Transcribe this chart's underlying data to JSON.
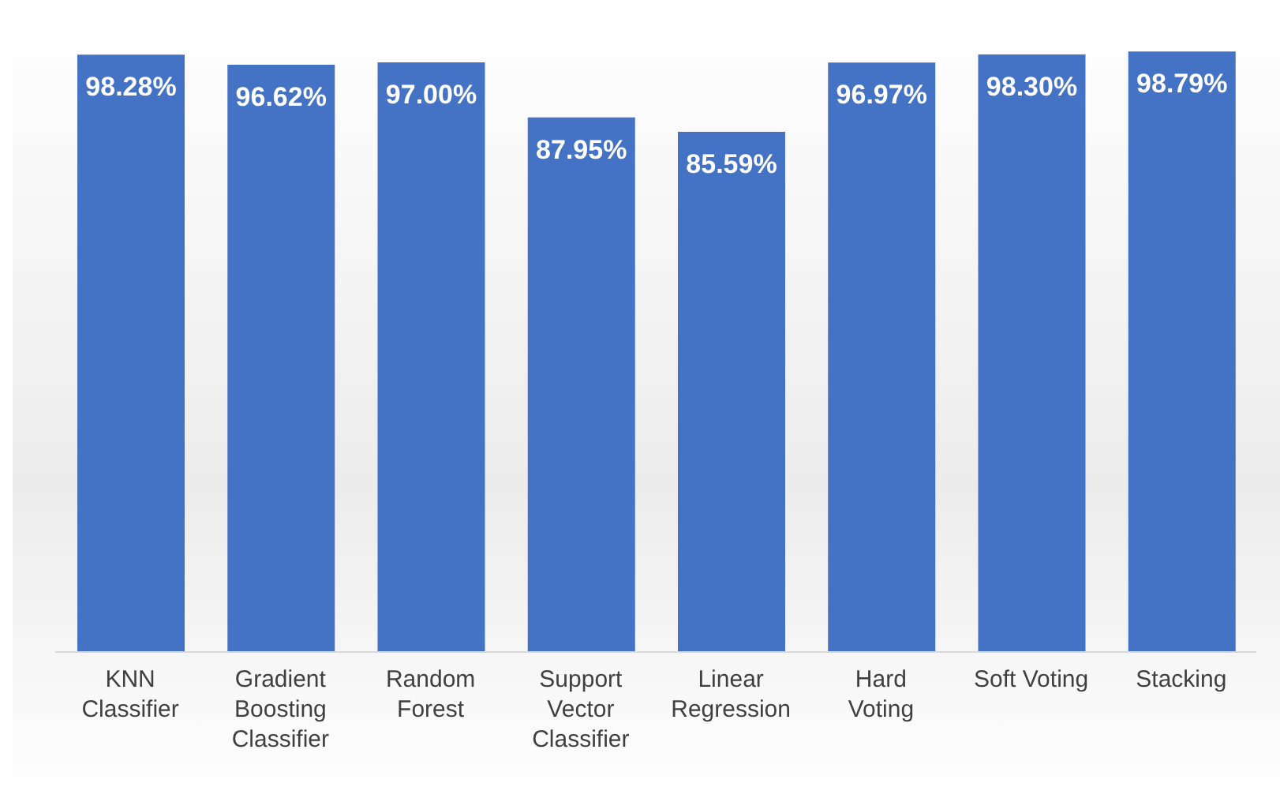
{
  "chart_data": {
    "type": "bar",
    "categories": [
      "KNN\nClassifier",
      "Gradient\nBoosting\nClassifier",
      "Random\nForest",
      "Support\nVector\nClassifier",
      "Linear\nRegression",
      "Hard\nVoting",
      "Soft Voting",
      "Stacking"
    ],
    "values": [
      98.28,
      96.62,
      97.0,
      87.95,
      85.59,
      96.97,
      98.3,
      98.79
    ],
    "value_labels": [
      "98.28%",
      "96.62%",
      "97.00%",
      "87.95%",
      "85.59%",
      "96.97%",
      "98.30%",
      "98.79%"
    ],
    "color": "#4472c4",
    "tick_labels": "x",
    "grid": false,
    "legend": false
  }
}
